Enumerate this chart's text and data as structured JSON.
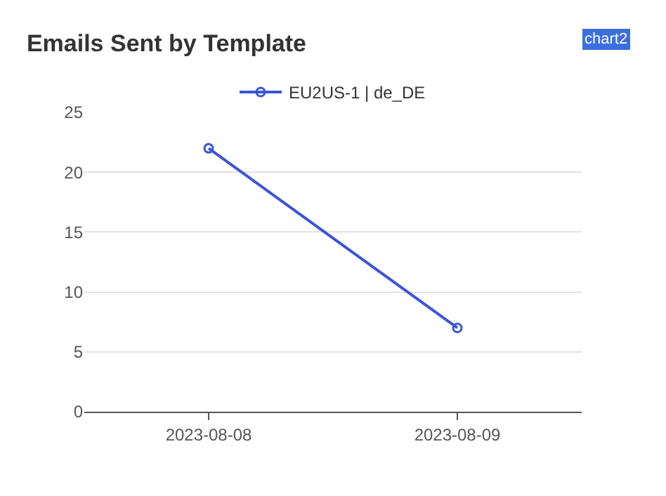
{
  "chart_data": {
    "type": "line",
    "title": "Emails Sent by Template",
    "categories": [
      "2023-08-08",
      "2023-08-09"
    ],
    "series": [
      {
        "name": "EU2US-1 | de_DE",
        "color": "#3b55d6",
        "values": [
          22,
          7
        ]
      }
    ],
    "ylim": [
      0,
      25
    ],
    "yticks": [
      0,
      5,
      10,
      15,
      20,
      25
    ],
    "grid": "y",
    "legend": "top",
    "marker": "circle",
    "annotations": [
      "chart2"
    ]
  }
}
